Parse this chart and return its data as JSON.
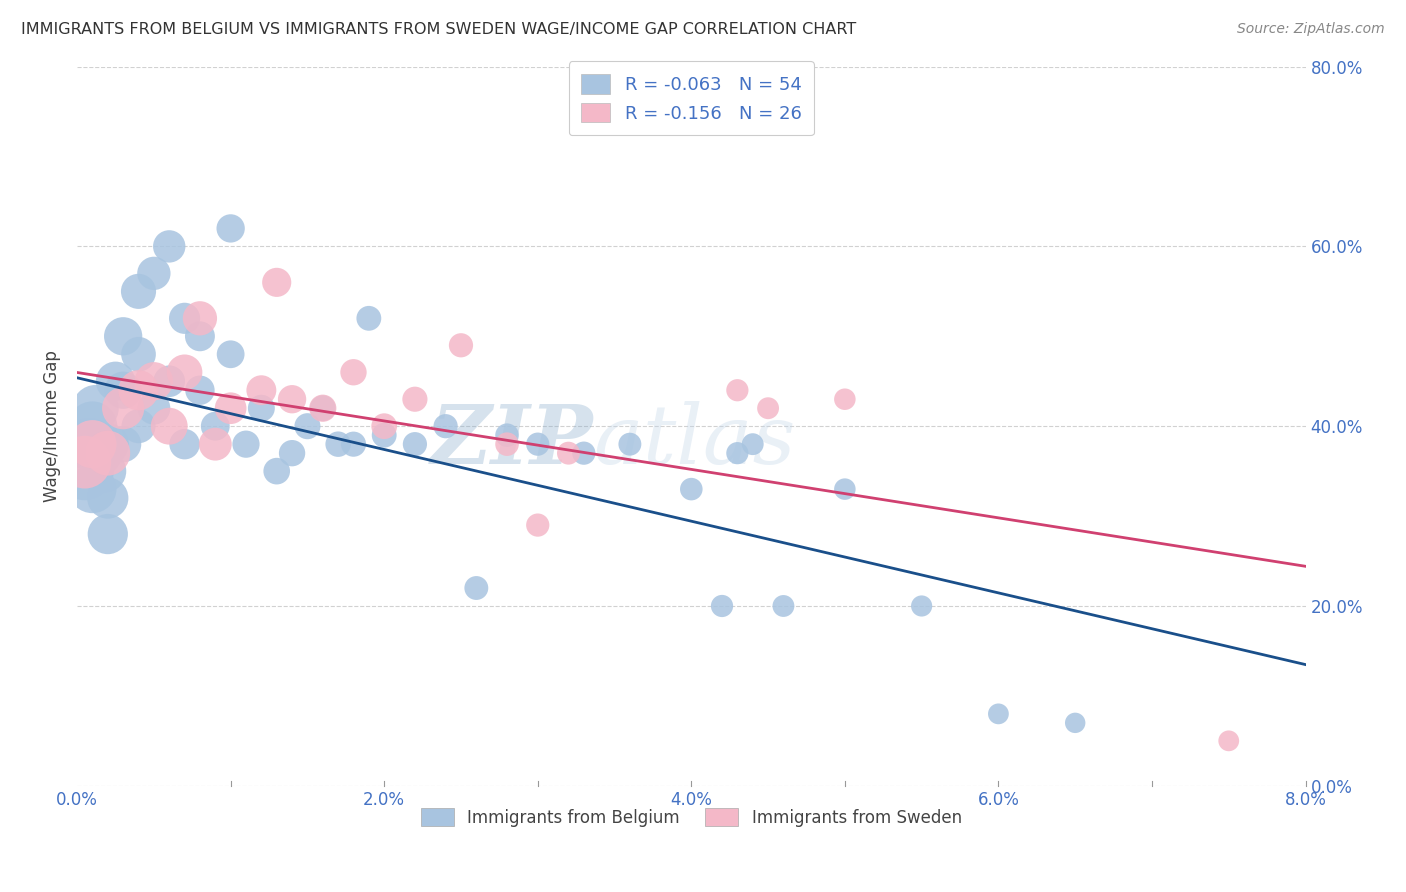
{
  "title": "IMMIGRANTS FROM BELGIUM VS IMMIGRANTS FROM SWEDEN WAGE/INCOME GAP CORRELATION CHART",
  "source": "Source: ZipAtlas.com",
  "ylabel": "Wage/Income Gap",
  "xlim": [
    0.0,
    0.08
  ],
  "ylim": [
    0.0,
    0.8
  ],
  "xticks": [
    0.0,
    0.01,
    0.02,
    0.03,
    0.04,
    0.05,
    0.06,
    0.07,
    0.08
  ],
  "xticklabels": [
    "0.0%",
    "",
    "2.0%",
    "",
    "4.0%",
    "",
    "6.0%",
    "",
    "8.0%"
  ],
  "yticks": [
    0.0,
    0.2,
    0.4,
    0.6,
    0.8
  ],
  "yticklabels": [
    "0.0%",
    "20.0%",
    "40.0%",
    "60.0%",
    "80.0%"
  ],
  "belgium_color": "#a8c4e0",
  "sweden_color": "#f4b8c8",
  "belgium_line_color": "#1a4f8a",
  "sweden_line_color": "#d04070",
  "belgium_R": -0.063,
  "belgium_N": 54,
  "sweden_R": -0.156,
  "sweden_N": 26,
  "legend_label_belgium": "Immigrants from Belgium",
  "legend_label_sweden": "Immigrants from Sweden",
  "watermark_zip": "ZIP",
  "watermark_atlas": "atlas",
  "belgium_x": [
    0.0005,
    0.0008,
    0.001,
    0.001,
    0.0012,
    0.0015,
    0.0018,
    0.002,
    0.002,
    0.002,
    0.0025,
    0.003,
    0.003,
    0.003,
    0.004,
    0.004,
    0.004,
    0.005,
    0.005,
    0.006,
    0.006,
    0.007,
    0.007,
    0.008,
    0.008,
    0.009,
    0.01,
    0.01,
    0.011,
    0.012,
    0.013,
    0.014,
    0.015,
    0.016,
    0.017,
    0.018,
    0.019,
    0.02,
    0.022,
    0.024,
    0.026,
    0.028,
    0.03,
    0.033,
    0.036,
    0.04,
    0.042,
    0.043,
    0.044,
    0.046,
    0.05,
    0.055,
    0.06,
    0.065
  ],
  "belgium_y": [
    0.35,
    0.38,
    0.4,
    0.33,
    0.42,
    0.37,
    0.35,
    0.38,
    0.32,
    0.28,
    0.45,
    0.5,
    0.44,
    0.38,
    0.55,
    0.48,
    0.4,
    0.57,
    0.42,
    0.6,
    0.45,
    0.52,
    0.38,
    0.5,
    0.44,
    0.4,
    0.62,
    0.48,
    0.38,
    0.42,
    0.35,
    0.37,
    0.4,
    0.42,
    0.38,
    0.38,
    0.52,
    0.39,
    0.38,
    0.4,
    0.22,
    0.39,
    0.38,
    0.37,
    0.38,
    0.33,
    0.2,
    0.37,
    0.38,
    0.2,
    0.33,
    0.2,
    0.08,
    0.07
  ],
  "belgium_sizes": [
    220,
    180,
    160,
    150,
    140,
    130,
    120,
    115,
    110,
    105,
    100,
    95,
    90,
    85,
    80,
    78,
    75,
    72,
    70,
    68,
    65,
    63,
    60,
    58,
    56,
    54,
    52,
    50,
    48,
    47,
    46,
    45,
    44,
    43,
    42,
    41,
    40,
    40,
    38,
    38,
    37,
    36,
    35,
    35,
    34,
    33,
    32,
    32,
    31,
    31,
    30,
    29,
    28,
    27
  ],
  "sweden_x": [
    0.0005,
    0.001,
    0.002,
    0.003,
    0.004,
    0.005,
    0.006,
    0.007,
    0.008,
    0.009,
    0.01,
    0.012,
    0.013,
    0.014,
    0.016,
    0.018,
    0.02,
    0.022,
    0.025,
    0.028,
    0.03,
    0.032,
    0.043,
    0.045,
    0.05,
    0.075
  ],
  "sweden_y": [
    0.36,
    0.38,
    0.37,
    0.42,
    0.44,
    0.45,
    0.4,
    0.46,
    0.52,
    0.38,
    0.42,
    0.44,
    0.56,
    0.43,
    0.42,
    0.46,
    0.4,
    0.43,
    0.49,
    0.38,
    0.29,
    0.37,
    0.44,
    0.42,
    0.43,
    0.05
  ],
  "sweden_sizes": [
    180,
    150,
    130,
    115,
    105,
    95,
    88,
    82,
    76,
    70,
    65,
    58,
    55,
    52,
    48,
    45,
    43,
    41,
    38,
    36,
    35,
    34,
    32,
    31,
    30,
    28
  ]
}
